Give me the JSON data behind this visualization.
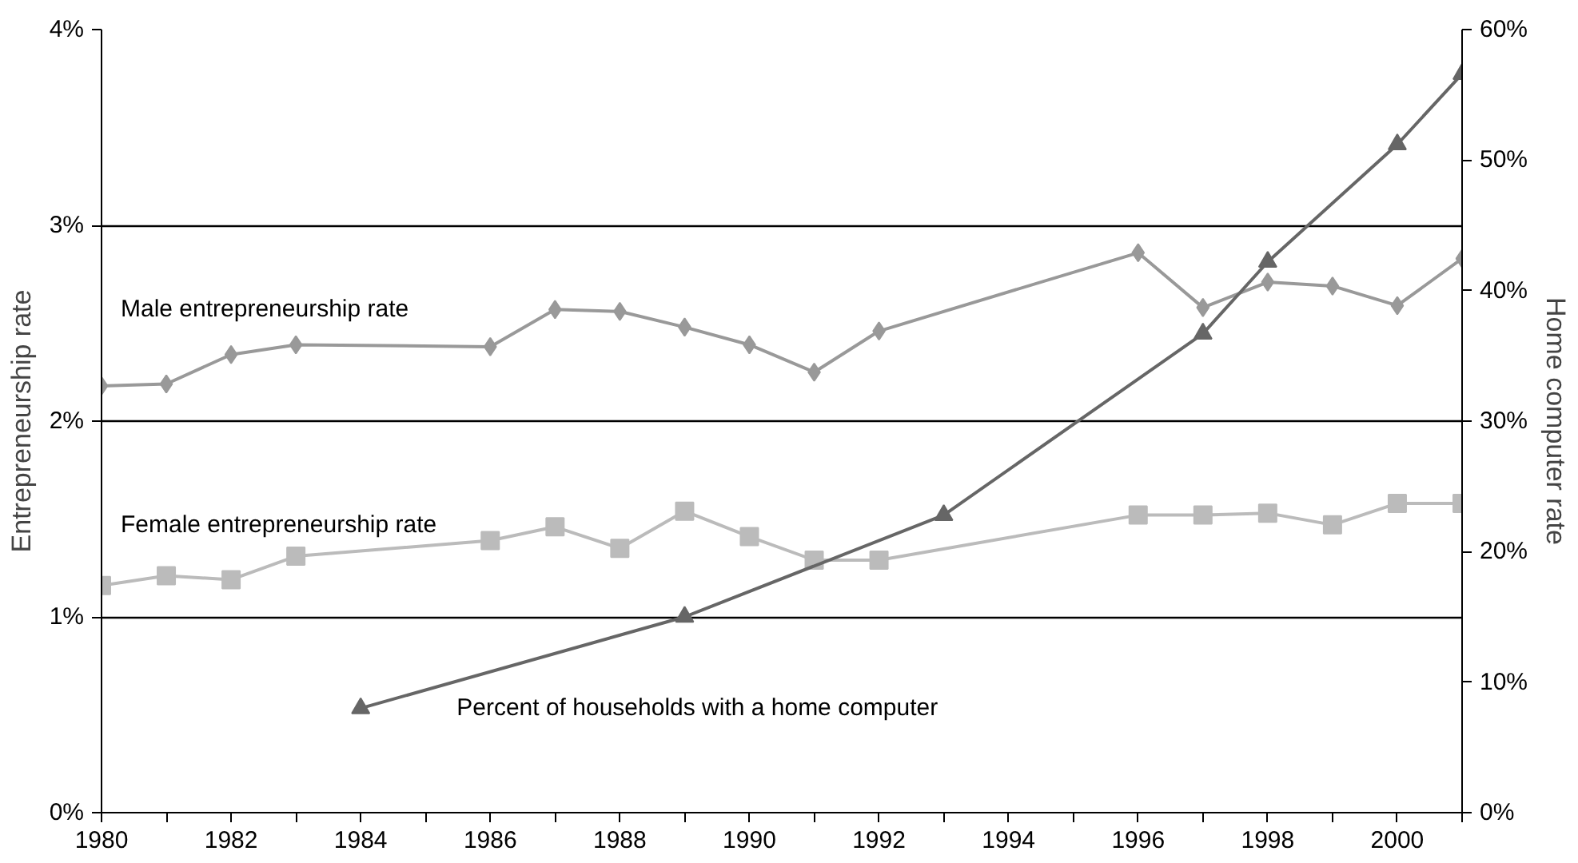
{
  "chart_data": {
    "type": "line",
    "xlabel": null,
    "ylabel": "Entrepreneurship rate",
    "y2label": "Home computer rate",
    "xlim": [
      1980,
      2001
    ],
    "xticks": [
      1980,
      {
        "value": 1981,
        "label": null
      },
      1982,
      {
        "value": 1983,
        "label": null
      },
      1984,
      {
        "value": 1985,
        "label": null
      },
      1986,
      {
        "value": 1987,
        "label": null
      },
      1988,
      {
        "value": 1989,
        "label": null
      },
      1990,
      {
        "value": 1991,
        "label": null
      },
      1992,
      {
        "value": 1993,
        "label": null
      },
      1994,
      {
        "value": 1995,
        "label": null
      },
      1996,
      {
        "value": 1997,
        "label": null
      },
      1998,
      {
        "value": 1999,
        "label": null
      },
      2000,
      {
        "value": 2001,
        "label": null
      }
    ],
    "ylim": [
      0,
      4
    ],
    "yticks": [
      {
        "value": 0,
        "label": "0%"
      },
      {
        "value": 1,
        "label": "1%"
      },
      {
        "value": 2,
        "label": "2%"
      },
      {
        "value": 3,
        "label": "3%"
      },
      {
        "value": 4,
        "label": "4%"
      }
    ],
    "y2lim": [
      0,
      60
    ],
    "y2ticks": [
      {
        "value": 0,
        "label": "0%"
      },
      {
        "value": 10,
        "label": "10%"
      },
      {
        "value": 20,
        "label": "20%"
      },
      {
        "value": 30,
        "label": "30%"
      },
      {
        "value": 40,
        "label": "40%"
      },
      {
        "value": 50,
        "label": "50%"
      },
      {
        "value": 60,
        "label": "60%"
      }
    ],
    "grid": "y",
    "series": [
      {
        "name": "Male entrepreneurship rate",
        "color": "#999999",
        "marker": "diamond",
        "x": [
          1980,
          1981,
          1982,
          1983,
          1986,
          1987,
          1988,
          1989,
          1990,
          1991,
          1992,
          1996,
          1997,
          1998,
          1999,
          2000,
          2001
        ],
        "values": [
          2.18,
          2.19,
          2.34,
          2.39,
          2.38,
          2.57,
          2.56,
          2.48,
          2.39,
          2.25,
          2.46,
          2.86,
          2.58,
          2.71,
          2.69,
          2.59,
          2.83
        ]
      },
      {
        "name": "Female entrepreneurship rate",
        "color": "#bbbbbb",
        "marker": "square",
        "x": [
          1980,
          1981,
          1982,
          1983,
          1986,
          1987,
          1988,
          1989,
          1990,
          1991,
          1992,
          1996,
          1997,
          1998,
          1999,
          2000,
          2001
        ],
        "values": [
          1.16,
          1.21,
          1.19,
          1.31,
          1.39,
          1.46,
          1.35,
          1.54,
          1.41,
          1.29,
          1.29,
          1.52,
          1.52,
          1.53,
          1.47,
          1.58,
          1.58
        ]
      },
      {
        "name": "Percent of households with a home computer",
        "color": "#666666",
        "marker": "triangle",
        "axis": "y2",
        "x": [
          1984,
          1989,
          1993,
          1997,
          1998,
          2000,
          2001
        ],
        "values": [
          8.0,
          15.0,
          22.8,
          36.7,
          42.2,
          51.2,
          56.6
        ]
      }
    ]
  }
}
